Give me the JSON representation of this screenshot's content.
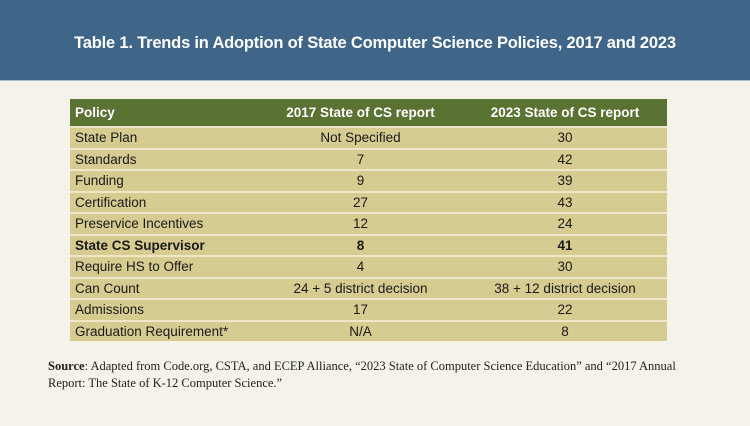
{
  "title": "Table 1. Trends in Adoption of State Computer Science Policies, 2017 and 2023",
  "table": {
    "headers": [
      "Policy",
      "2017 State of CS report",
      "2023 State of CS report"
    ],
    "rows": [
      {
        "policy": "State Plan",
        "y2017": "Not Specified",
        "y2023": "30",
        "bold": false
      },
      {
        "policy": "Standards",
        "y2017": "7",
        "y2023": "42",
        "bold": false
      },
      {
        "policy": "Funding",
        "y2017": "9",
        "y2023": "39",
        "bold": false
      },
      {
        "policy": "Certification",
        "y2017": "27",
        "y2023": "43",
        "bold": false
      },
      {
        "policy": "Preservice Incentives",
        "y2017": "12",
        "y2023": "24",
        "bold": false
      },
      {
        "policy": "State CS Supervisor",
        "y2017": "8",
        "y2023": "41",
        "bold": true
      },
      {
        "policy": "Require HS to Offer",
        "y2017": "4",
        "y2023": "30",
        "bold": false
      },
      {
        "policy": "Can Count",
        "y2017": "24 + 5 district decision",
        "y2023": "38 + 12 district decision",
        "bold": false
      },
      {
        "policy": "Admissions",
        "y2017": "17",
        "y2023": "22",
        "bold": false
      },
      {
        "policy": "Graduation Requirement*",
        "y2017": "N/A",
        "y2023": "8",
        "bold": false
      }
    ]
  },
  "source": {
    "label": "Source",
    "text": ": Adapted from Code.org, CSTA, and ECEP Alliance, “2023 State of Computer Science Education” and “2017 Annual Report: The State of K-12 Computer Science.”"
  },
  "colors": {
    "banner": "#3f6588",
    "header": "#5a7232",
    "row": "#d6cb90",
    "background": "#f5f2ea"
  }
}
